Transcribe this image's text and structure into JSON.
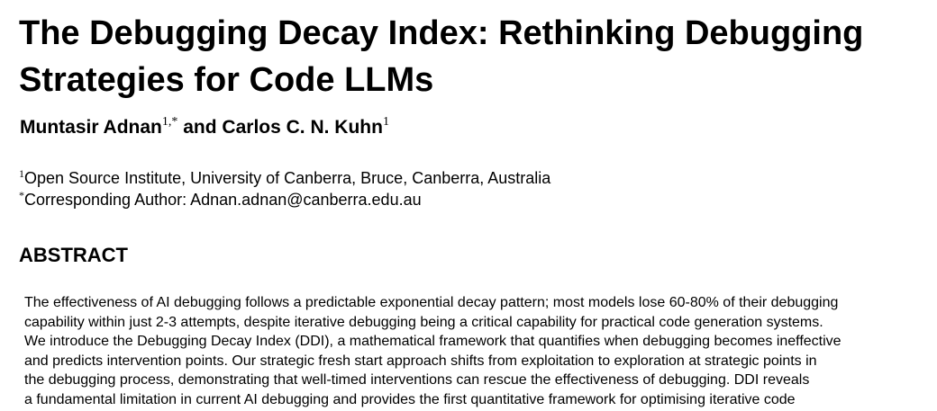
{
  "paper": {
    "title": "The Debugging Decay Index: Rethinking Debugging Strategies for Code LLMs",
    "authors": [
      {
        "name": "Muntasir Adnan",
        "sup": "1,*"
      },
      {
        "name": "Carlos C. N. Kuhn",
        "sup": "1"
      }
    ],
    "author_conjunction": "and",
    "affiliations": [
      {
        "mark": "1",
        "text": "Open Source Institute, University of Canberra, Bruce, Canberra, Australia"
      },
      {
        "mark": "*",
        "text": "Corresponding Author: Adnan.adnan@canberra.edu.au"
      }
    ],
    "abstract_heading": "ABSTRACT",
    "abstract_lines": [
      "The effectiveness of AI debugging follows a predictable exponential decay pattern; most models lose 60-80% of their debugging",
      "capability within just 2-3 attempts, despite iterative debugging being a critical capability for practical code generation systems.",
      "We introduce the Debugging Decay Index (DDI), a mathematical framework that quantifies when debugging becomes ineffective",
      "and predicts intervention points. Our strategic fresh start approach shifts from exploitation to exploration at strategic points in",
      "the debugging process, demonstrating that well-timed interventions can rescue the effectiveness of debugging. DDI reveals",
      "a fundamental limitation in current AI debugging and provides the first quantitative framework for optimising iterative code"
    ]
  }
}
